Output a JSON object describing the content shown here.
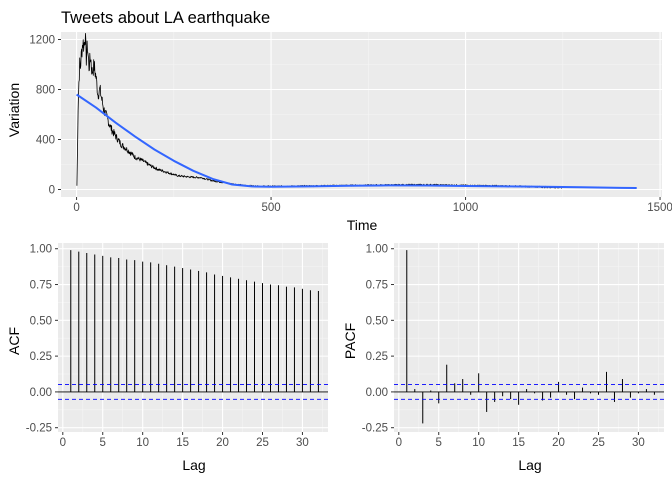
{
  "chart_data": [
    {
      "type": "line",
      "title": "Tweets about LA earthquake",
      "xlabel": "Time",
      "ylabel": "Variation",
      "xlim": [
        -40,
        1505
      ],
      "ylim": [
        -60,
        1260
      ],
      "xticks": [
        0,
        500,
        1000,
        1500
      ],
      "yticks": [
        0,
        400,
        800,
        1200
      ],
      "grid": true,
      "series": [
        {
          "color": "#000000",
          "style": "raw-noisy",
          "x": [
            1,
            2,
            4,
            6,
            8,
            10,
            13,
            16,
            19,
            22,
            25,
            28,
            32,
            36,
            40,
            45,
            50,
            55,
            60,
            70,
            80,
            90,
            100,
            115,
            130,
            150,
            170,
            190,
            210,
            230,
            260,
            290,
            320,
            350,
            380,
            400,
            430,
            470,
            520,
            600,
            700,
            800,
            900,
            1000,
            1100,
            1200,
            1250
          ],
          "values": [
            30,
            220,
            650,
            860,
            1000,
            980,
            1100,
            1180,
            1150,
            1240,
            1050,
            1150,
            980,
            1060,
            940,
            990,
            900,
            760,
            800,
            640,
            560,
            480,
            430,
            360,
            320,
            260,
            230,
            190,
            160,
            140,
            110,
            100,
            95,
            70,
            55,
            45,
            32,
            25,
            25,
            28,
            32,
            36,
            38,
            32,
            28,
            20,
            15
          ]
        },
        {
          "color": "#3366FF",
          "style": "smooth",
          "x": [
            0,
            50,
            100,
            150,
            200,
            250,
            300,
            350,
            400,
            450,
            500,
            600,
            700,
            800,
            900,
            1000,
            1100,
            1200,
            1300,
            1400,
            1440
          ],
          "values": [
            760,
            655,
            535,
            425,
            320,
            230,
            150,
            85,
            40,
            25,
            22,
            25,
            30,
            33,
            32,
            28,
            25,
            22,
            18,
            13,
            12
          ]
        }
      ]
    },
    {
      "type": "bar",
      "xlabel": "Lag",
      "ylabel": "ACF",
      "xlim": [
        -0.6,
        33.2
      ],
      "ylim": [
        -0.28,
        1.04
      ],
      "xticks": [
        0,
        5,
        10,
        15,
        20,
        25,
        30
      ],
      "yticks": [
        -0.25,
        0.0,
        0.25,
        0.5,
        0.75,
        1.0
      ],
      "ci": 0.052,
      "grid": true,
      "x": [
        1,
        2,
        3,
        4,
        5,
        6,
        7,
        8,
        9,
        10,
        11,
        12,
        13,
        14,
        15,
        16,
        17,
        18,
        19,
        20,
        21,
        22,
        23,
        24,
        25,
        26,
        27,
        28,
        29,
        30,
        31,
        32
      ],
      "values": [
        0.99,
        0.98,
        0.97,
        0.96,
        0.95,
        0.94,
        0.935,
        0.925,
        0.92,
        0.91,
        0.905,
        0.895,
        0.885,
        0.875,
        0.865,
        0.855,
        0.845,
        0.835,
        0.82,
        0.81,
        0.8,
        0.79,
        0.78,
        0.77,
        0.76,
        0.75,
        0.745,
        0.735,
        0.73,
        0.72,
        0.71,
        0.705
      ]
    },
    {
      "type": "bar",
      "xlabel": "Lag",
      "ylabel": "PACF",
      "xlim": [
        -0.6,
        33.2
      ],
      "ylim": [
        -0.28,
        1.04
      ],
      "xticks": [
        0,
        5,
        10,
        15,
        20,
        25,
        30
      ],
      "yticks": [
        -0.25,
        0.0,
        0.25,
        0.5,
        0.75,
        1.0
      ],
      "ci": 0.052,
      "grid": true,
      "x": [
        1,
        2,
        3,
        4,
        5,
        6,
        7,
        8,
        9,
        10,
        11,
        12,
        13,
        14,
        15,
        16,
        17,
        18,
        19,
        20,
        21,
        22,
        23,
        24,
        25,
        26,
        27,
        28,
        29,
        30,
        31,
        32
      ],
      "values": [
        0.99,
        0.02,
        -0.22,
        0.01,
        -0.08,
        0.19,
        0.06,
        0.09,
        -0.02,
        0.13,
        -0.14,
        -0.07,
        -0.03,
        -0.05,
        -0.09,
        0.02,
        -0.01,
        -0.06,
        -0.04,
        0.07,
        -0.02,
        -0.05,
        0.03,
        -0.01,
        -0.02,
        0.14,
        -0.07,
        0.09,
        -0.04,
        -0.01,
        0.02,
        -0.02
      ]
    }
  ]
}
